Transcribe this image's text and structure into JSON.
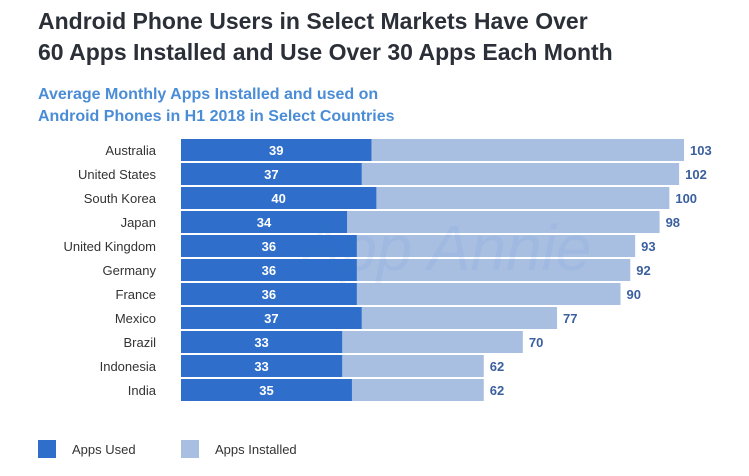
{
  "title_line1": "Android Phone Users in Select Markets Have Over",
  "title_line2": "60 Apps Installed and Use Over 30 Apps Each Month",
  "watermark": "App Annie",
  "chart_data": {
    "type": "bar",
    "orientation": "horizontal",
    "overlay": true,
    "title": "Average Monthly Apps Installed and used on Android Phones in H1 2018 in Select Countries",
    "subtitle_line1": "Average Monthly Apps Installed and used on",
    "subtitle_line2": "Android Phones in H1 2018 in Select Countries",
    "categories": [
      "Australia",
      "United States",
      "South Korea",
      "Japan",
      "United Kingdom",
      "Germany",
      "France",
      "Mexico",
      "Brazil",
      "Indonesia",
      "India"
    ],
    "series": [
      {
        "name": "Apps Used",
        "color": "#2f6fcb",
        "values": [
          39,
          37,
          40,
          34,
          36,
          36,
          36,
          37,
          33,
          33,
          35
        ]
      },
      {
        "name": "Apps Installed",
        "color": "#a9bfe2",
        "values": [
          103,
          102,
          100,
          98,
          93,
          92,
          90,
          77,
          70,
          62,
          62
        ]
      }
    ],
    "xlim": [
      0,
      103
    ],
    "grid": false,
    "legend": "bottom-left"
  }
}
